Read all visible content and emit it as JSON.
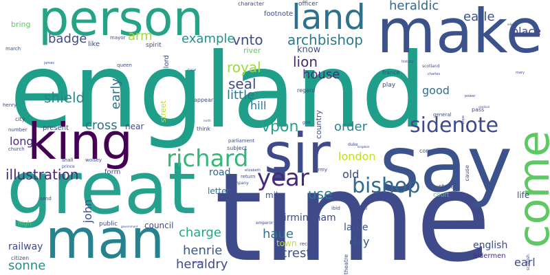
{
  "words": [
    {
      "text": "england",
      "color": "#1f9e89"
    },
    {
      "text": "time",
      "color": "#3e4a89"
    },
    {
      "text": "great",
      "color": "#25a18e"
    },
    {
      "text": "make",
      "color": "#3b528b"
    },
    {
      "text": "person",
      "color": "#26a387"
    },
    {
      "text": "say",
      "color": "#3b528b"
    },
    {
      "text": "man",
      "color": "#26828e"
    },
    {
      "text": "sir",
      "color": "#3e4a89"
    },
    {
      "text": "king",
      "color": "#440154"
    },
    {
      "text": "come",
      "color": "#5ec962"
    },
    {
      "text": "land",
      "color": "#2c728e"
    },
    {
      "text": "richard",
      "color": "#35b779"
    },
    {
      "text": "sidenote",
      "color": "#3e4a89"
    },
    {
      "text": "bishop",
      "color": "#31688e"
    },
    {
      "text": "year",
      "color": "#482878"
    },
    {
      "text": "illustration",
      "color": "#482878"
    },
    {
      "text": "archbishop",
      "color": "#2a788e"
    },
    {
      "text": "heraldic",
      "color": "#31688e"
    },
    {
      "text": "earle",
      "color": "#3b528b"
    },
    {
      "text": "place",
      "color": "#3e4a89"
    },
    {
      "text": "vnto",
      "color": "#3e4a89"
    },
    {
      "text": "badge",
      "color": "#3e4a89"
    },
    {
      "text": "arm",
      "color": "#a0da39"
    },
    {
      "text": "example",
      "color": "#21918c"
    },
    {
      "text": "royal",
      "color": "#9bd93c"
    },
    {
      "text": "lion",
      "color": "#482878"
    },
    {
      "text": "know",
      "color": "#3b528b"
    },
    {
      "text": "house",
      "color": "#472d7b"
    },
    {
      "text": "seal",
      "color": "#3e4a89"
    },
    {
      "text": "little",
      "color": "#2a788e"
    },
    {
      "text": "shield",
      "color": "#25858e"
    },
    {
      "text": "early",
      "color": "#2c728e"
    },
    {
      "text": "cross",
      "color": "#2c728e"
    },
    {
      "text": "vpon",
      "color": "#25a18e"
    },
    {
      "text": "order",
      "color": "#25858e"
    },
    {
      "text": "hill",
      "color": "#2a788e"
    },
    {
      "text": "good",
      "color": "#2c728e"
    },
    {
      "text": "london",
      "color": "#bddf26"
    },
    {
      "text": "old",
      "color": "#3e4a89"
    },
    {
      "text": "use",
      "color": "#2a788e"
    },
    {
      "text": "long",
      "color": "#472d7b"
    },
    {
      "text": "road",
      "color": "#31688e"
    },
    {
      "text": "john",
      "color": "#3e4a89"
    },
    {
      "text": "charge",
      "color": "#22a884"
    },
    {
      "text": "haue",
      "color": "#2c728e"
    },
    {
      "text": "crest",
      "color": "#3b528b"
    },
    {
      "text": "birmingham",
      "color": "#3e4a89"
    },
    {
      "text": "large",
      "color": "#3b528b"
    },
    {
      "text": "day",
      "color": "#38588c"
    },
    {
      "text": "henrie",
      "color": "#38588c"
    },
    {
      "text": "heraldry",
      "color": "#3e4a89"
    },
    {
      "text": "council",
      "color": "#3e4a89"
    },
    {
      "text": "railway",
      "color": "#3e4a89"
    },
    {
      "text": "sonne",
      "color": "#21918c"
    },
    {
      "text": "town",
      "color": "#bddf26"
    },
    {
      "text": "mile",
      "color": "#3e4a89"
    },
    {
      "text": "letter",
      "color": "#2c728e"
    },
    {
      "text": "english",
      "color": "#3e4a89"
    },
    {
      "text": "earl",
      "color": "#3e4a89"
    },
    {
      "text": "aldermen",
      "color": "#472d7b"
    },
    {
      "text": "life",
      "color": "#3e4a89"
    },
    {
      "text": "state",
      "color": "#3e4a89"
    },
    {
      "text": "court",
      "color": "#5ec962"
    },
    {
      "text": "present",
      "color": "#3e4a89"
    },
    {
      "text": "near",
      "color": "#3e4a89"
    },
    {
      "text": "form",
      "color": "#3e4a89"
    },
    {
      "text": "country",
      "color": "#3e4a89"
    },
    {
      "text": "street",
      "color": "#bddf26"
    },
    {
      "text": "lord",
      "color": "#3e4a89"
    },
    {
      "text": "spirit",
      "color": "#3e4a89"
    },
    {
      "text": "river",
      "color": "#5ec962"
    },
    {
      "text": "footnote",
      "color": "#3e4a89"
    },
    {
      "text": "officer",
      "color": "#3e4a89"
    },
    {
      "text": "character",
      "color": "#3e4a89"
    },
    {
      "text": "bring",
      "color": "#5ec962"
    },
    {
      "text": "like",
      "color": "#3e4a89"
    },
    {
      "text": "mayor",
      "color": "#3e4a89"
    },
    {
      "text": "queen",
      "color": "#3e4a89"
    },
    {
      "text": "appear",
      "color": "#3e4a89"
    },
    {
      "text": "regard",
      "color": "#3e4a89"
    },
    {
      "text": "play",
      "color": "#3e4a89"
    },
    {
      "text": "france",
      "color": "#3e4a89"
    },
    {
      "text": "general",
      "color": "#3e4a89"
    },
    {
      "text": "pass",
      "color": "#3e4a89"
    },
    {
      "text": "common",
      "color": "#3e4a89"
    },
    {
      "text": "cause",
      "color": "#3e4a89"
    },
    {
      "text": "subject",
      "color": "#3e4a89"
    },
    {
      "text": "parliament",
      "color": "#3e4a89"
    },
    {
      "text": "think",
      "color": "#3e4a89"
    },
    {
      "text": "return",
      "color": "#3e4a89"
    },
    {
      "text": "company",
      "color": "#3e4a89"
    },
    {
      "text": "city",
      "color": "#3e4a89"
    },
    {
      "text": "number",
      "color": "#3e4a89"
    },
    {
      "text": "church",
      "color": "#3e4a89"
    },
    {
      "text": "henry",
      "color": "#3e4a89"
    },
    {
      "text": "march",
      "color": "#3e4a89"
    },
    {
      "text": "high",
      "color": "#5ec962"
    },
    {
      "text": "public",
      "color": "#3e4a89"
    },
    {
      "text": "citizen",
      "color": "#3e4a89"
    },
    {
      "text": "shall",
      "color": "#3e4a89"
    },
    {
      "text": "wolsey",
      "color": "#3e4a89"
    },
    {
      "text": "prince",
      "color": "#3e4a89"
    },
    {
      "text": "emperor",
      "color": "#3e4a89"
    },
    {
      "text": "ibid",
      "color": "#3e4a89"
    },
    {
      "text": "receive",
      "color": "#3e4a89"
    },
    {
      "text": "theatre",
      "color": "#3e4a89"
    },
    {
      "text": "army",
      "color": "#3e4a89"
    },
    {
      "text": "god",
      "color": "#3e4a89"
    },
    {
      "text": "duke",
      "color": "#3e4a89"
    },
    {
      "text": "elizabeth",
      "color": "#3e4a89"
    },
    {
      "text": "send",
      "color": "#3e4a89"
    },
    {
      "text": "scotland",
      "color": "#3e4a89"
    },
    {
      "text": "scottish",
      "color": "#3e4a89"
    },
    {
      "text": "history",
      "color": "#3e4a89"
    },
    {
      "text": "charles",
      "color": "#3e4a89"
    },
    {
      "text": "mary",
      "color": "#3e4a89"
    },
    {
      "text": "power",
      "color": "#3e4a89"
    },
    {
      "text": "cardinal",
      "color": "#3e4a89"
    },
    {
      "text": "pope",
      "color": "#3e4a89"
    },
    {
      "text": "james",
      "color": "#3e4a89"
    },
    {
      "text": "edward",
      "color": "#3e4a89"
    },
    {
      "text": "chapel",
      "color": "#3e4a89"
    },
    {
      "text": "national",
      "color": "#3e4a89"
    },
    {
      "text": "north",
      "color": "#3e4a89"
    },
    {
      "text": "kingdom",
      "color": "#3e4a89"
    },
    {
      "text": "realm",
      "color": "#3e4a89"
    },
    {
      "text": "government",
      "color": "#3e4a89"
    }
  ]
}
